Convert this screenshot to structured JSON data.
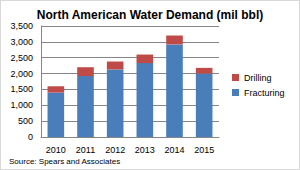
{
  "chart_data": {
    "type": "bar",
    "title": "North American Water Demand (mil bbl)",
    "categories": [
      "2010",
      "2011",
      "2012",
      "2013",
      "2014",
      "2015"
    ],
    "series": [
      {
        "name": "Fracturing",
        "color": "#4a7ebb",
        "values": [
          1400,
          1920,
          2130,
          2330,
          2920,
          2000
        ]
      },
      {
        "name": "Drilling",
        "color": "#be4b48",
        "values": [
          200,
          280,
          250,
          270,
          280,
          180
        ]
      }
    ],
    "stacked": true,
    "ylim": [
      0,
      3500
    ],
    "yticks": [
      0,
      500,
      {
        "value": 1000,
        "label": "1,000"
      },
      {
        "value": 1500,
        "label": "1,500"
      },
      {
        "value": 2000,
        "label": "2,000"
      },
      {
        "value": 2500,
        "label": "2,500"
      },
      {
        "value": 3000,
        "label": "3,000"
      },
      {
        "value": 3500,
        "label": "3,500"
      }
    ],
    "grid": true,
    "legend": "right",
    "annotation": "Source: Spears and Associates"
  }
}
